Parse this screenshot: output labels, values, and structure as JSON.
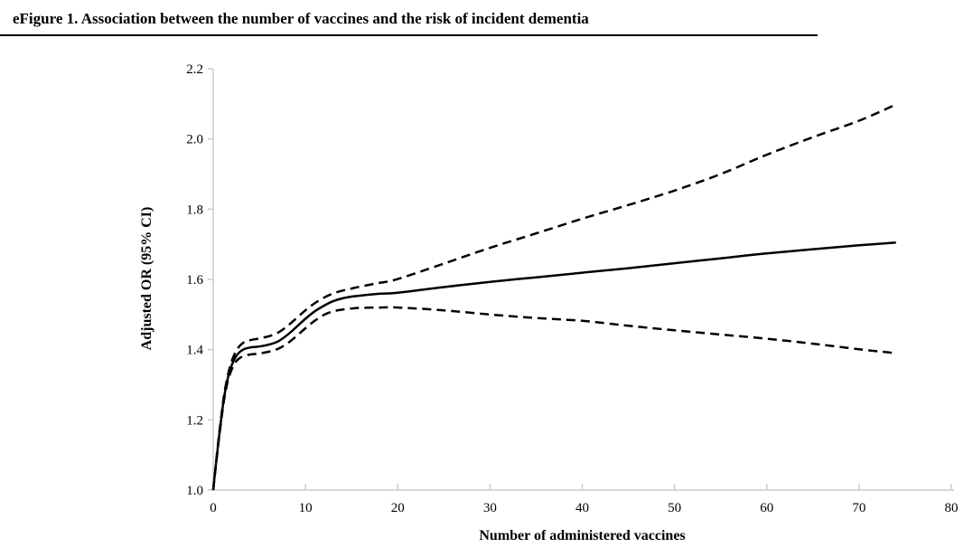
{
  "page": {
    "title": "eFigure 1. Association between the number of vaccines and the risk of incident dementia"
  },
  "chart_data": {
    "type": "line",
    "title": "eFigure 1. Association between the number of vaccines and the risk of incident dementia",
    "xlabel": "Number of administered vaccines",
    "ylabel": "Adjusted OR (95% CI)",
    "xlim": [
      0,
      80
    ],
    "ylim": [
      1.0,
      2.2
    ],
    "x_ticks": [
      0,
      10,
      20,
      30,
      40,
      50,
      60,
      70,
      80
    ],
    "x_tick_labels": [
      "0",
      "10",
      "20",
      "30",
      "40",
      "50",
      "60",
      "70",
      "80"
    ],
    "y_ticks": [
      1.0,
      1.2,
      1.4,
      1.6,
      1.8,
      2.0,
      2.2
    ],
    "y_tick_labels": [
      "1.0",
      "1.2",
      "1.4",
      "1.6",
      "1.8",
      "2.0",
      "2.2"
    ],
    "grid": false,
    "legend": "none",
    "axis_color": "#c8c8c8",
    "line_color": "#000000",
    "x": [
      0,
      0.3,
      0.6,
      0.9,
      1.2,
      1.6,
      2,
      2.5,
      3,
      3.5,
      4,
      5,
      6,
      7,
      8,
      9,
      10,
      11,
      12,
      13,
      14,
      15,
      16,
      18,
      20,
      25,
      30,
      35,
      40,
      45,
      50,
      55,
      60,
      65,
      70,
      74
    ],
    "series": [
      {
        "id": "adjusted-or",
        "name": "Adjusted OR",
        "style": "solid",
        "values": [
          1.0,
          1.075,
          1.145,
          1.21,
          1.268,
          1.32,
          1.355,
          1.382,
          1.396,
          1.403,
          1.406,
          1.409,
          1.414,
          1.423,
          1.441,
          1.464,
          1.488,
          1.509,
          1.525,
          1.538,
          1.546,
          1.551,
          1.554,
          1.559,
          1.562,
          1.578,
          1.593,
          1.606,
          1.619,
          1.632,
          1.646,
          1.66,
          1.674,
          1.686,
          1.697,
          1.705
        ]
      },
      {
        "id": "upper-95ci",
        "name": "Upper 95% CI",
        "style": "dashed",
        "values": [
          1.0,
          1.078,
          1.15,
          1.216,
          1.275,
          1.328,
          1.367,
          1.397,
          1.414,
          1.423,
          1.427,
          1.432,
          1.438,
          1.448,
          1.466,
          1.489,
          1.512,
          1.532,
          1.548,
          1.56,
          1.568,
          1.574,
          1.58,
          1.59,
          1.601,
          1.645,
          1.69,
          1.731,
          1.773,
          1.812,
          1.853,
          1.9,
          1.955,
          2.005,
          2.052,
          2.098
        ]
      },
      {
        "id": "lower-95ci",
        "name": "Lower 95% CI",
        "style": "dashed",
        "values": [
          1.0,
          1.072,
          1.14,
          1.204,
          1.261,
          1.312,
          1.343,
          1.367,
          1.378,
          1.383,
          1.386,
          1.389,
          1.394,
          1.402,
          1.417,
          1.438,
          1.461,
          1.482,
          1.499,
          1.509,
          1.514,
          1.517,
          1.519,
          1.52,
          1.52,
          1.512,
          1.5,
          1.49,
          1.482,
          1.468,
          1.455,
          1.443,
          1.431,
          1.417,
          1.401,
          1.39
        ]
      }
    ]
  }
}
